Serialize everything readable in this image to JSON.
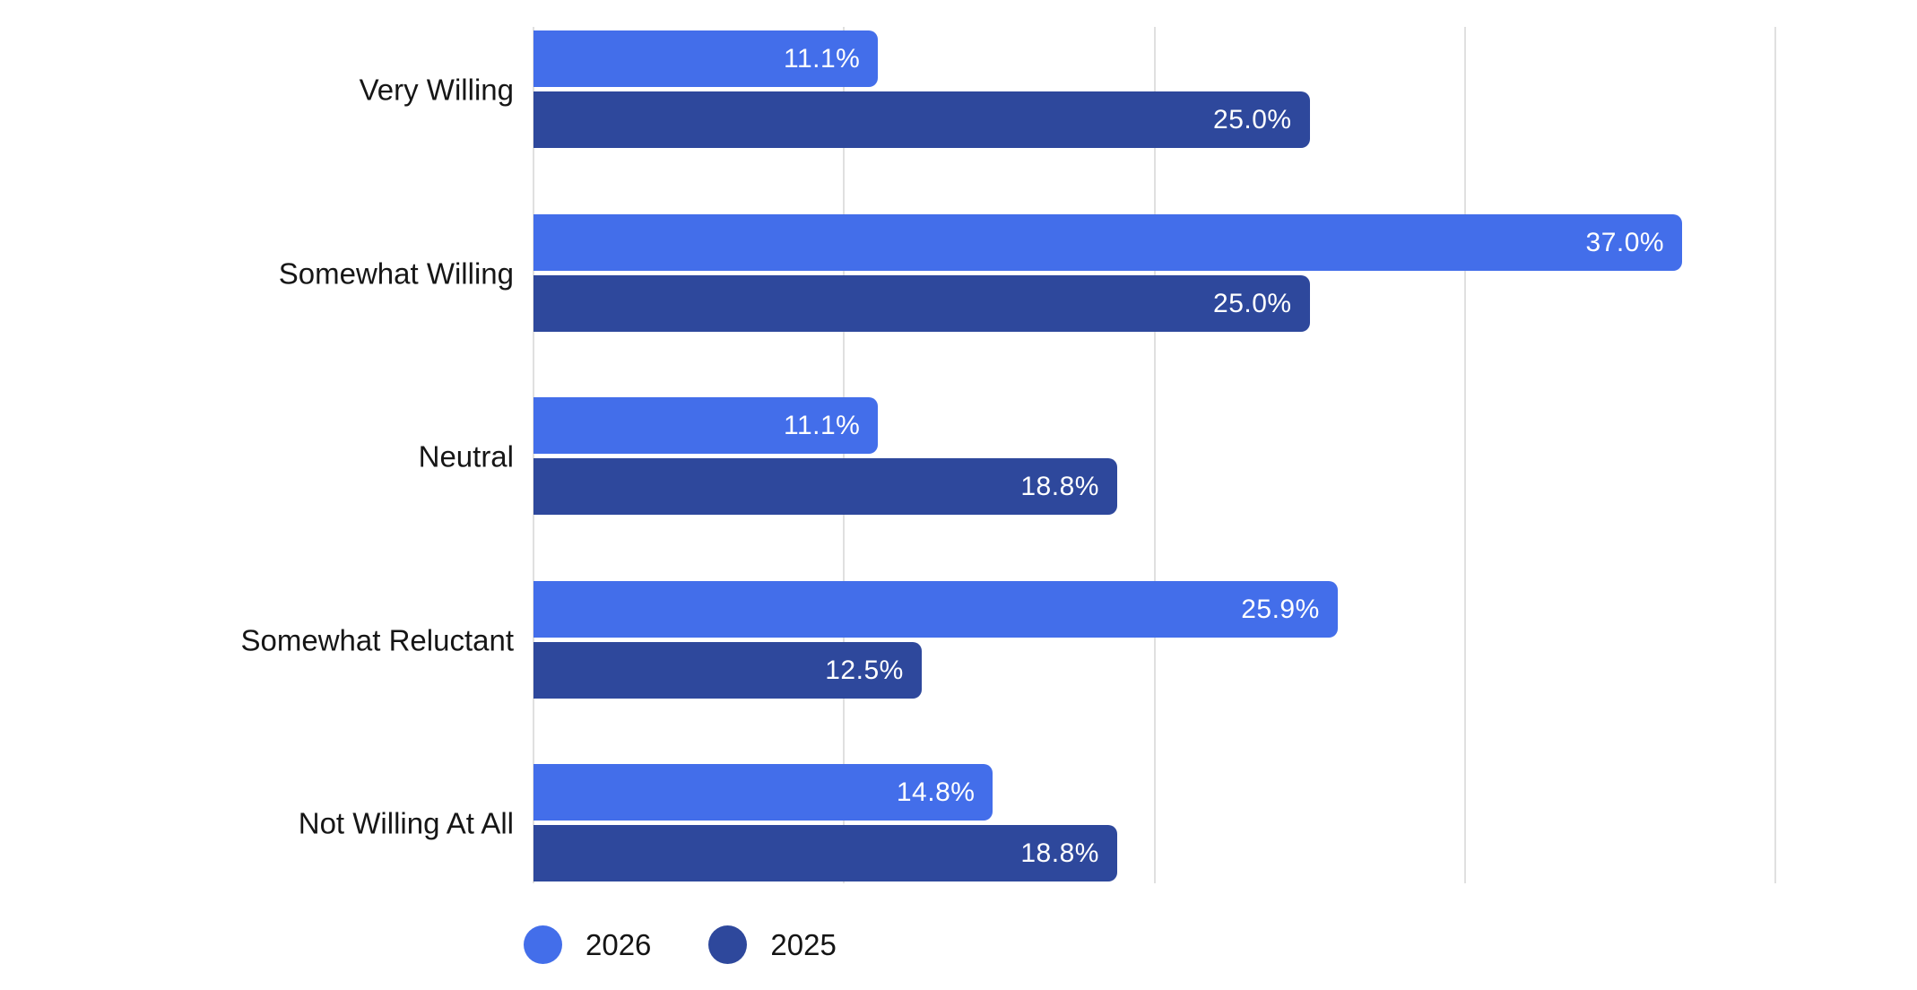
{
  "chart_data": {
    "type": "bar",
    "orientation": "horizontal",
    "title": "",
    "xlabel": "",
    "ylabel": "",
    "xlim": [
      0,
      40
    ],
    "x_ticks_percent": [
      0,
      10,
      20,
      30,
      40
    ],
    "grid": true,
    "legend_position": "bottom-left",
    "categories": [
      "Very Willing",
      "Somewhat Willing",
      "Neutral",
      "Somewhat Reluctant",
      "Not Willing At All"
    ],
    "series": [
      {
        "name": "2026",
        "color": "#436EEA",
        "values": [
          11.1,
          37.0,
          11.1,
          25.9,
          14.8
        ],
        "labels": [
          "11.1%",
          "37.0%",
          "11.1%",
          "25.9%",
          "14.8%"
        ]
      },
      {
        "name": "2025",
        "color": "#2E489C",
        "values": [
          25.0,
          25.0,
          18.8,
          12.5,
          18.8
        ],
        "labels": [
          "25.0%",
          "25.0%",
          "18.8%",
          "12.5%",
          "18.8%"
        ]
      }
    ]
  },
  "colors": {
    "background": "#FFFFFF",
    "gridline": "#E0E0E0",
    "category_text": "#161616",
    "value_text": "#FFFFFF"
  }
}
